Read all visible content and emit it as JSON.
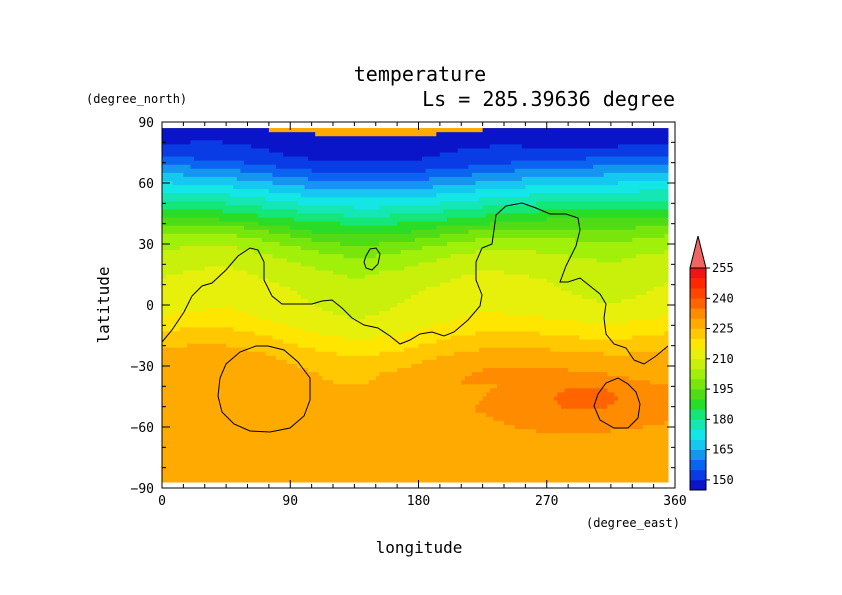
{
  "chart_data": {
    "type": "heatmap",
    "title": "temperature",
    "subtitle": "Ls = 285.39636 degree",
    "xlabel": "longitude",
    "ylabel": "latitude",
    "x_units": "(degree_east)",
    "y_units": "(degree_north)",
    "xlim": [
      0,
      360
    ],
    "ylim": [
      -90,
      90
    ],
    "x_ticks": [
      0,
      90,
      180,
      270,
      360
    ],
    "y_ticks": [
      90,
      60,
      30,
      0,
      -30,
      -60,
      -90
    ],
    "x_tick_labels": [
      "0",
      "90",
      "180",
      "270",
      "360"
    ],
    "y_tick_labels": [
      "90",
      "60",
      "30",
      "0",
      "−30",
      "−60",
      "−90"
    ],
    "data_lat_range": [
      -87,
      87
    ],
    "data_lon_range": [
      0,
      355
    ],
    "colorbar": {
      "levels": [
        145,
        150,
        155,
        160,
        165,
        170,
        175,
        180,
        185,
        190,
        195,
        200,
        205,
        210,
        215,
        220,
        225,
        230,
        235,
        240,
        245,
        250,
        255,
        260
      ],
      "colors": [
        "#0a14c8",
        "#0a3ce6",
        "#0a64f0",
        "#1496f0",
        "#14c8f0",
        "#14e6e6",
        "#14e6b4",
        "#14e678",
        "#28dc28",
        "#50dc14",
        "#78e60a",
        "#a0f00a",
        "#c8f00a",
        "#e6f00a",
        "#ffe600",
        "#ffc800",
        "#ffaa00",
        "#ff8c00",
        "#ff6400",
        "#ff4600",
        "#ff2800",
        "#f01414",
        "#f06464"
      ],
      "tick_labels": [
        "150",
        "165",
        "180",
        "195",
        "210",
        "225",
        "240",
        "255"
      ],
      "extend": "max"
    },
    "latitude_profile": {
      "lat": [
        87,
        80,
        75,
        70,
        65,
        60,
        55,
        50,
        45,
        40,
        35,
        30,
        25,
        20,
        15,
        10,
        5,
        0,
        -5,
        -10,
        -15,
        -20,
        -25,
        -30,
        -40,
        -50,
        -60,
        -70,
        -80,
        -87
      ],
      "temp": [
        149,
        149,
        150,
        154,
        160,
        166,
        172,
        178,
        184,
        190,
        196,
        201,
        204,
        207,
        208,
        210,
        211,
        212,
        213,
        216,
        219,
        222,
        225,
        227,
        228,
        229,
        229,
        228,
        227,
        226
      ]
    },
    "contour_color": "#000000"
  }
}
